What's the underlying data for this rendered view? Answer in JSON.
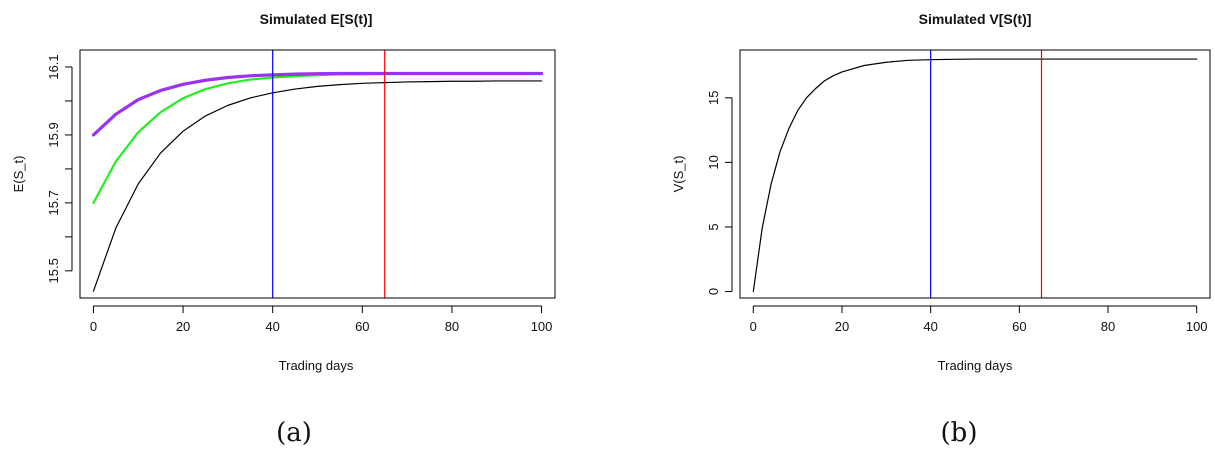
{
  "chart_data": [
    {
      "type": "line",
      "title": "Simulated E[S(t)]",
      "xlabel": "Trading days",
      "ylabel": "E(S_t)",
      "xlim": [
        -3,
        103
      ],
      "ylim": [
        15.42,
        16.15
      ],
      "xticks": [
        0,
        20,
        40,
        60,
        80,
        100
      ],
      "yticks": [
        15.5,
        15.7,
        15.9,
        16.1
      ],
      "yticks_minor": [
        15.6,
        15.8,
        16.0
      ],
      "caption": "(a)",
      "series": [
        {
          "color": "#000000",
          "width": 1.2,
          "x": [
            0,
            5,
            10,
            15,
            20,
            25,
            30,
            35,
            40,
            45,
            50,
            55,
            60,
            65,
            70,
            75,
            80,
            85,
            90,
            95,
            100
          ],
          "y": [
            15.44,
            15.626,
            15.756,
            15.847,
            15.911,
            15.956,
            15.987,
            16.009,
            16.024,
            16.035,
            16.043,
            16.048,
            16.052,
            16.054,
            16.056,
            16.057,
            16.058,
            16.058,
            16.059,
            16.059,
            16.059
          ]
        },
        {
          "color": "#22ee22",
          "width": 2.2,
          "x": [
            0,
            5,
            10,
            15,
            20,
            25,
            30,
            35,
            40,
            45,
            50,
            55,
            60,
            65,
            70,
            75,
            80,
            85,
            90,
            95,
            100
          ],
          "y": [
            15.7,
            15.822,
            15.908,
            15.967,
            16.008,
            16.035,
            16.052,
            16.063,
            16.069,
            16.073,
            16.076,
            16.078,
            16.078,
            16.079,
            16.079,
            16.079,
            16.079,
            16.079,
            16.079,
            16.079,
            16.079
          ]
        },
        {
          "color": "#9933ee",
          "width": 3.2,
          "x": [
            0,
            5,
            10,
            15,
            20,
            25,
            30,
            35,
            40,
            45,
            50,
            55,
            60,
            65,
            70,
            75,
            80,
            85,
            90,
            95,
            100
          ],
          "y": [
            15.9,
            15.961,
            16.004,
            16.031,
            16.049,
            16.061,
            16.069,
            16.074,
            16.077,
            16.079,
            16.08,
            16.081,
            16.081,
            16.081,
            16.081,
            16.081,
            16.081,
            16.081,
            16.081,
            16.081,
            16.081
          ]
        }
      ],
      "vlines": [
        {
          "x": 40,
          "color": "#0000ff"
        },
        {
          "x": 65,
          "color": "#ff0000"
        }
      ]
    },
    {
      "type": "line",
      "title": "Simulated V[S(t)]",
      "xlabel": "Trading days",
      "ylabel": "V(S_t)",
      "xlim": [
        -3,
        103
      ],
      "ylim": [
        -0.5,
        18.7
      ],
      "xticks": [
        0,
        20,
        40,
        60,
        80,
        100
      ],
      "yticks": [
        0,
        5,
        10,
        15
      ],
      "caption": "(b)",
      "series": [
        {
          "color": "#000000",
          "width": 1.2,
          "x": [
            0,
            2,
            4,
            6,
            8,
            10,
            12,
            14,
            16,
            18,
            20,
            25,
            30,
            35,
            40,
            45,
            50,
            60,
            70,
            80,
            90,
            100
          ],
          "y": [
            0,
            4.9,
            8.3,
            10.8,
            12.6,
            14.0,
            15.0,
            15.7,
            16.3,
            16.7,
            17.0,
            17.5,
            17.75,
            17.9,
            17.95,
            17.98,
            18.0,
            18.0,
            18.0,
            18.0,
            18.0,
            18.0
          ]
        }
      ],
      "vlines": [
        {
          "x": 40,
          "color": "#0000ff"
        },
        {
          "x": 65,
          "color": "#ff0000"
        }
      ]
    }
  ]
}
